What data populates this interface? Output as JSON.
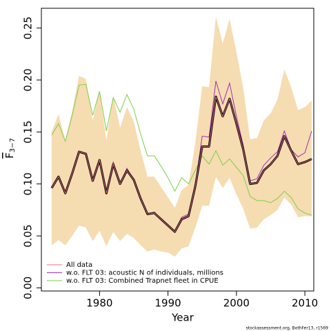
{
  "chart_data": {
    "type": "line",
    "x_label": "Year",
    "y_label": "F",
    "y_label_sub": "3−7",
    "footer": "stockassessment.org, BothFer13, r1569",
    "x": [
      1973,
      1974,
      1975,
      1976,
      1977,
      1978,
      1979,
      1980,
      1981,
      1982,
      1983,
      1984,
      1985,
      1986,
      1987,
      1988,
      1989,
      1990,
      1991,
      1992,
      1993,
      1994,
      1995,
      1996,
      1997,
      1998,
      1999,
      2000,
      2001,
      2002,
      2003,
      2004,
      2005,
      2006,
      2007,
      2008,
      2009,
      2010,
      2011
    ],
    "band": {
      "color": "#f6dcb1",
      "upper": [
        0.15,
        0.167,
        0.142,
        0.17,
        0.204,
        0.201,
        0.161,
        0.19,
        0.142,
        0.185,
        0.154,
        0.174,
        0.16,
        0.132,
        0.107,
        0.107,
        0.097,
        0.087,
        0.077,
        0.094,
        0.099,
        0.14,
        0.194,
        0.193,
        0.261,
        0.235,
        0.259,
        0.227,
        0.192,
        0.143,
        0.144,
        0.161,
        0.168,
        0.181,
        0.21,
        0.193,
        0.171,
        0.174,
        0.18
      ],
      "lower": [
        0.041,
        0.046,
        0.041,
        0.05,
        0.06,
        0.058,
        0.045,
        0.055,
        0.04,
        0.054,
        0.045,
        0.052,
        0.048,
        0.041,
        0.035,
        0.037,
        0.035,
        0.034,
        0.03,
        0.038,
        0.04,
        0.058,
        0.079,
        0.079,
        0.107,
        0.096,
        0.106,
        0.09,
        0.076,
        0.057,
        0.058,
        0.066,
        0.07,
        0.075,
        0.087,
        0.08,
        0.068,
        0.069,
        0.069
      ]
    },
    "base_line_color": "#000000",
    "series": [
      {
        "name": "All data",
        "color": "#e8707a",
        "values": [
          0.096,
          0.107,
          0.091,
          0.11,
          0.131,
          0.129,
          0.103,
          0.123,
          0.091,
          0.119,
          0.1,
          0.113,
          0.104,
          0.086,
          0.071,
          0.072,
          0.066,
          0.06,
          0.054,
          0.066,
          0.069,
          0.098,
          0.136,
          0.136,
          0.184,
          0.165,
          0.182,
          0.158,
          0.133,
          0.1,
          0.101,
          0.113,
          0.119,
          0.127,
          0.146,
          0.132,
          0.119,
          0.121,
          0.124
        ]
      },
      {
        "name": "w.o. FLT 03:   acoustic   N of individuals, millions",
        "color": "#9b30b0",
        "values": [
          0.096,
          0.107,
          0.091,
          0.11,
          0.131,
          0.129,
          0.103,
          0.123,
          0.091,
          0.121,
          0.1,
          0.115,
          0.104,
          0.086,
          0.071,
          0.073,
          0.066,
          0.06,
          0.054,
          0.068,
          0.071,
          0.1,
          0.146,
          0.145,
          0.199,
          0.177,
          0.197,
          0.165,
          0.137,
          0.103,
          0.105,
          0.118,
          0.125,
          0.131,
          0.151,
          0.133,
          0.126,
          0.13,
          0.151
        ]
      },
      {
        "name": "w.o. FLT 03: Combined Trapnet fleet in CPUE",
        "color": "#7ccd4a",
        "values": [
          0.147,
          0.158,
          0.141,
          0.166,
          0.195,
          0.196,
          0.166,
          0.189,
          0.151,
          0.183,
          0.169,
          0.186,
          0.172,
          0.148,
          0.127,
          0.127,
          0.117,
          0.106,
          0.093,
          0.106,
          0.1,
          0.113,
          0.127,
          0.119,
          0.132,
          0.118,
          0.124,
          0.116,
          0.108,
          0.088,
          0.084,
          0.084,
          0.082,
          0.086,
          0.093,
          0.087,
          0.076,
          0.072,
          0.07
        ]
      }
    ],
    "xlim": [
      1971.5,
      2011.3
    ],
    "ylim": [
      -0.003,
      0.269
    ],
    "xticks": [
      1980,
      1990,
      2000,
      2010
    ],
    "yticks": [
      {
        "value": 0,
        "label": "0.00"
      },
      0.05,
      {
        "value": 0.1,
        "label": "0.10"
      },
      0.15,
      {
        "value": 0.2,
        "label": "0.20"
      },
      0.25
    ],
    "legend": "bottom-left"
  }
}
